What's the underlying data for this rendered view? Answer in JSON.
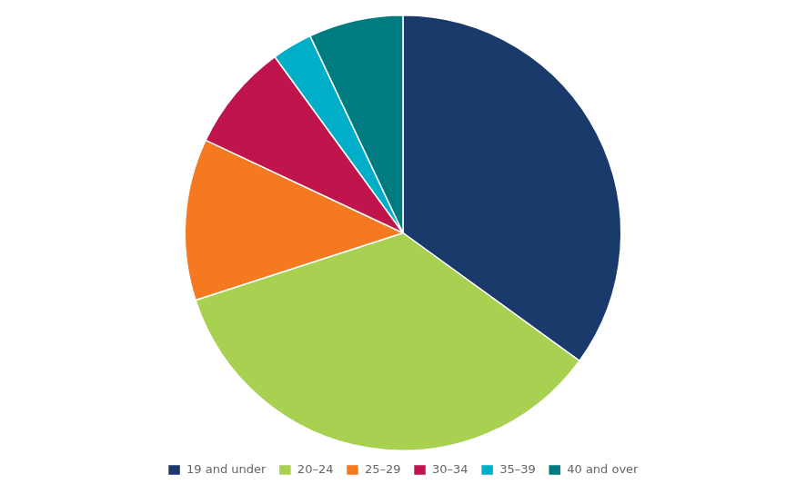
{
  "chart_data": {
    "type": "pie",
    "categories": [
      "19 and under",
      "20–24",
      "25–29",
      "30–34",
      "35–39",
      "40 and over"
    ],
    "values": [
      35,
      35,
      12,
      8,
      3,
      7
    ],
    "colors": [
      "#1a3a6b",
      "#a8d051",
      "#f47920",
      "#c0144c",
      "#00aec7",
      "#007b7f"
    ],
    "legend": "bottom"
  }
}
